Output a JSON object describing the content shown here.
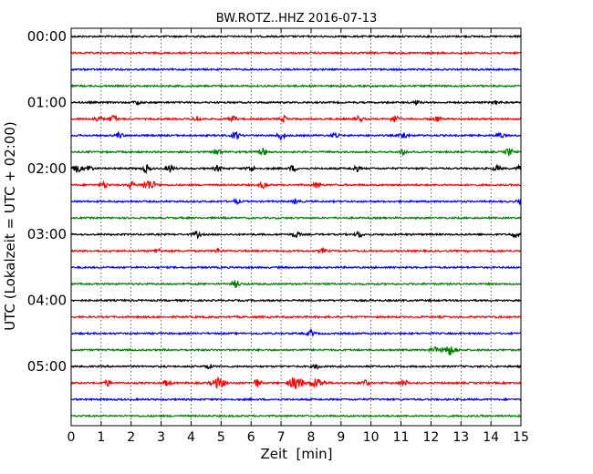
{
  "chart_data": {
    "type": "line",
    "title": "BW.ROTZ..HHZ 2016-07-13",
    "xlabel": "Zeit  [min]",
    "ylabel": "UTC (Lokalzeit = UTC + 02:00)",
    "xlim": [
      0,
      15
    ],
    "x_ticks": [
      "0",
      "1",
      "2",
      "3",
      "4",
      "5",
      "6",
      "7",
      "8",
      "9",
      "10",
      "11",
      "12",
      "13",
      "14",
      "15"
    ],
    "y_ticks": [
      "00:00",
      "01:00",
      "02:00",
      "03:00",
      "04:00",
      "05:00"
    ],
    "x_grid": "dotted vertical lines at each minute",
    "trace_colors": [
      "#000000",
      "#ff0000",
      "#0000ff",
      "#008000"
    ],
    "rows": [
      {
        "time": "00:00",
        "color": "#000000",
        "events": []
      },
      {
        "time": "00:15",
        "color": "#ff0000",
        "events": []
      },
      {
        "time": "00:30",
        "color": "#0000ff",
        "events": []
      },
      {
        "time": "00:45",
        "color": "#008000",
        "events": []
      },
      {
        "time": "01:00",
        "color": "#000000",
        "events": [
          [
            2.2,
            2
          ],
          [
            11.5,
            2
          ],
          [
            14.2,
            2
          ]
        ]
      },
      {
        "time": "01:15",
        "color": "#ff0000",
        "events": [
          [
            0.9,
            3
          ],
          [
            1.4,
            4
          ],
          [
            4.2,
            3
          ],
          [
            5.4,
            3
          ],
          [
            7.1,
            3
          ],
          [
            9.6,
            3
          ],
          [
            10.8,
            4
          ],
          [
            12.2,
            3
          ]
        ]
      },
      {
        "time": "01:30",
        "color": "#0000ff",
        "events": [
          [
            1.6,
            3
          ],
          [
            5.5,
            4
          ],
          [
            7.0,
            4
          ],
          [
            8.8,
            3
          ],
          [
            11.1,
            4
          ],
          [
            14.3,
            3
          ]
        ]
      },
      {
        "time": "01:45",
        "color": "#008000",
        "events": [
          [
            4.9,
            3
          ],
          [
            6.4,
            4
          ],
          [
            11.1,
            3
          ],
          [
            14.6,
            4
          ]
        ]
      },
      {
        "time": "02:00",
        "color": "#000000",
        "events": [
          [
            0.2,
            4
          ],
          [
            0.6,
            3
          ],
          [
            2.5,
            4
          ],
          [
            3.3,
            4
          ],
          [
            4.9,
            3
          ],
          [
            6.0,
            3
          ],
          [
            7.4,
            3
          ],
          [
            9.5,
            3
          ],
          [
            14.2,
            3
          ],
          [
            15.0,
            4
          ]
        ]
      },
      {
        "time": "02:15",
        "color": "#ff0000",
        "events": [
          [
            1.1,
            3
          ],
          [
            2.0,
            3
          ],
          [
            2.6,
            5
          ],
          [
            6.4,
            3
          ],
          [
            8.2,
            3
          ]
        ]
      },
      {
        "time": "02:30",
        "color": "#0000ff",
        "events": [
          [
            5.5,
            2
          ],
          [
            7.5,
            2
          ],
          [
            15.0,
            2
          ]
        ]
      },
      {
        "time": "02:45",
        "color": "#008000",
        "events": []
      },
      {
        "time": "03:00",
        "color": "#000000",
        "events": [
          [
            4.2,
            3
          ],
          [
            7.5,
            3
          ],
          [
            9.6,
            3
          ],
          [
            14.8,
            3
          ]
        ]
      },
      {
        "time": "03:15",
        "color": "#ff0000",
        "events": [
          [
            2.9,
            2
          ],
          [
            4.9,
            2
          ],
          [
            8.4,
            2
          ]
        ]
      },
      {
        "time": "03:30",
        "color": "#0000ff",
        "events": []
      },
      {
        "time": "03:45",
        "color": "#008000",
        "events": [
          [
            5.5,
            4
          ]
        ]
      },
      {
        "time": "04:00",
        "color": "#000000",
        "events": []
      },
      {
        "time": "04:15",
        "color": "#ff0000",
        "events": []
      },
      {
        "time": "04:30",
        "color": "#0000ff",
        "events": [
          [
            8.0,
            3
          ]
        ]
      },
      {
        "time": "04:45",
        "color": "#008000",
        "events": [
          [
            12.1,
            3
          ],
          [
            12.6,
            5
          ]
        ]
      },
      {
        "time": "05:00",
        "color": "#000000",
        "events": [
          [
            4.6,
            2
          ],
          [
            8.2,
            2
          ]
        ]
      },
      {
        "time": "05:15",
        "color": "#ff0000",
        "events": [
          [
            1.2,
            3
          ],
          [
            3.2,
            3
          ],
          [
            4.9,
            5
          ],
          [
            6.2,
            4
          ],
          [
            7.5,
            7
          ],
          [
            8.2,
            5
          ],
          [
            9.8,
            3
          ],
          [
            11.1,
            3
          ]
        ]
      },
      {
        "time": "05:30",
        "color": "#0000ff",
        "events": []
      },
      {
        "time": "05:45",
        "color": "#008000",
        "events": []
      }
    ]
  }
}
